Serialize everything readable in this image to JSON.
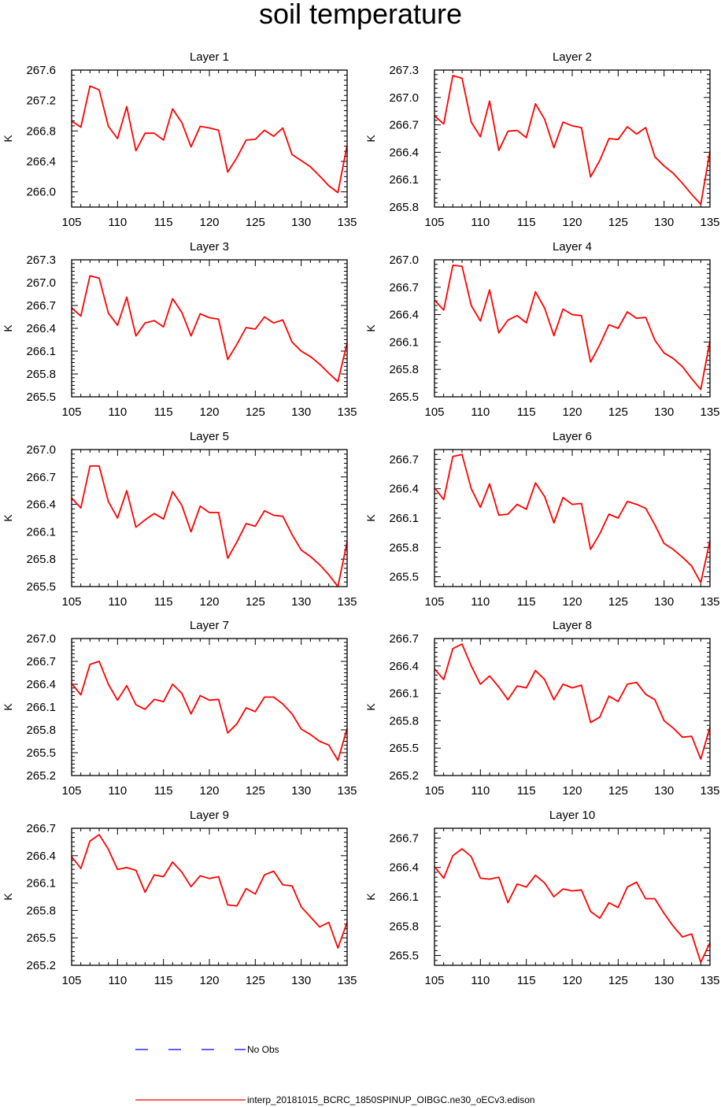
{
  "title": "soil temperature",
  "colors": {
    "model_line": "#ff0000",
    "obs_line": "#0000ff",
    "axes": "#000000"
  },
  "legend": {
    "obs_label": "No Obs",
    "model_label": "interp_20181015_BCRC_1850SPINUP_OIBGC.ne30_oECv3.edison"
  },
  "chart_data": [
    {
      "type": "line",
      "title": "Layer 1",
      "ylabel": "K",
      "xlim": [
        105,
        135
      ],
      "ylim": [
        265.8,
        267.6
      ],
      "xticks": [
        105,
        110,
        115,
        120,
        125,
        130,
        135
      ],
      "yticks": [
        "266.0",
        "266.4",
        "266.8",
        "267.2",
        "267.6"
      ],
      "x": [
        105,
        106,
        107,
        108,
        109,
        110,
        111,
        112,
        113,
        114,
        115,
        116,
        117,
        118,
        119,
        120,
        121,
        122,
        123,
        124,
        125,
        126,
        127,
        128,
        129,
        130,
        131,
        132,
        133,
        134,
        135
      ],
      "series": [
        {
          "values": [
            266.93,
            266.85,
            267.39,
            267.34,
            266.86,
            266.7,
            267.12,
            266.54,
            266.77,
            266.77,
            266.68,
            267.09,
            266.91,
            266.59,
            266.86,
            266.84,
            266.81,
            266.26,
            266.45,
            266.68,
            266.69,
            266.81,
            266.73,
            266.84,
            266.49,
            266.41,
            266.33,
            266.21,
            266.08,
            265.99,
            266.61
          ]
        }
      ]
    },
    {
      "type": "line",
      "title": "Layer 2",
      "ylabel": "K",
      "xlim": [
        105,
        135
      ],
      "ylim": [
        265.8,
        267.3
      ],
      "xticks": [
        105,
        110,
        115,
        120,
        125,
        130,
        135
      ],
      "yticks": [
        "265.8",
        "266.1",
        "266.4",
        "266.7",
        "267.0",
        "267.3"
      ],
      "x": [
        105,
        106,
        107,
        108,
        109,
        110,
        111,
        112,
        113,
        114,
        115,
        116,
        117,
        118,
        119,
        120,
        121,
        122,
        123,
        124,
        125,
        126,
        127,
        128,
        129,
        130,
        131,
        132,
        133,
        134,
        135
      ],
      "series": [
        {
          "values": [
            266.8,
            266.71,
            267.24,
            267.21,
            266.73,
            266.57,
            266.96,
            266.42,
            266.63,
            266.64,
            266.56,
            266.93,
            266.76,
            266.45,
            266.73,
            266.69,
            266.67,
            266.13,
            266.31,
            266.55,
            266.54,
            266.68,
            266.6,
            266.67,
            266.35,
            266.25,
            266.17,
            266.06,
            265.94,
            265.83,
            266.41
          ]
        }
      ]
    },
    {
      "type": "line",
      "title": "Layer 3",
      "ylabel": "K",
      "xlim": [
        105,
        135
      ],
      "ylim": [
        265.5,
        267.3
      ],
      "xticks": [
        105,
        110,
        115,
        120,
        125,
        130,
        135
      ],
      "yticks": [
        "265.5",
        "265.8",
        "266.1",
        "266.4",
        "266.7",
        "267.0",
        "267.3"
      ],
      "x": [
        105,
        106,
        107,
        108,
        109,
        110,
        111,
        112,
        113,
        114,
        115,
        116,
        117,
        118,
        119,
        120,
        121,
        122,
        123,
        124,
        125,
        126,
        127,
        128,
        129,
        130,
        131,
        132,
        133,
        134,
        135
      ],
      "series": [
        {
          "values": [
            266.67,
            266.56,
            267.09,
            267.06,
            266.6,
            266.44,
            266.81,
            266.3,
            266.47,
            266.5,
            266.42,
            266.79,
            266.61,
            266.3,
            266.59,
            266.54,
            266.52,
            265.99,
            266.19,
            266.41,
            266.39,
            266.55,
            266.47,
            266.51,
            266.22,
            266.1,
            266.03,
            265.93,
            265.81,
            265.7,
            266.21
          ]
        }
      ]
    },
    {
      "type": "line",
      "title": "Layer 4",
      "ylabel": "K",
      "xlim": [
        105,
        135
      ],
      "ylim": [
        265.5,
        267.0
      ],
      "xticks": [
        105,
        110,
        115,
        120,
        125,
        130,
        135
      ],
      "yticks": [
        "265.5",
        "265.8",
        "266.1",
        "266.4",
        "266.7",
        "267.0"
      ],
      "x": [
        105,
        106,
        107,
        108,
        109,
        110,
        111,
        112,
        113,
        114,
        115,
        116,
        117,
        118,
        119,
        120,
        121,
        122,
        123,
        124,
        125,
        126,
        127,
        128,
        129,
        130,
        131,
        132,
        133,
        134,
        135
      ],
      "series": [
        {
          "values": [
            266.56,
            266.45,
            266.94,
            266.93,
            266.5,
            266.33,
            266.67,
            266.2,
            266.34,
            266.39,
            266.31,
            266.65,
            266.47,
            266.17,
            266.46,
            266.4,
            266.39,
            265.88,
            266.07,
            266.29,
            266.25,
            266.43,
            266.36,
            266.37,
            266.12,
            265.98,
            265.92,
            265.83,
            265.7,
            265.58,
            266.11
          ]
        }
      ]
    },
    {
      "type": "line",
      "title": "Layer 5",
      "ylabel": "K",
      "xlim": [
        105,
        135
      ],
      "ylim": [
        265.5,
        267.0
      ],
      "xticks": [
        105,
        110,
        115,
        120,
        125,
        130,
        135
      ],
      "yticks": [
        "265.5",
        "265.8",
        "266.1",
        "266.4",
        "266.7",
        "267.0"
      ],
      "x": [
        105,
        106,
        107,
        108,
        109,
        110,
        111,
        112,
        113,
        114,
        115,
        116,
        117,
        118,
        119,
        120,
        121,
        122,
        123,
        124,
        125,
        126,
        127,
        128,
        129,
        130,
        131,
        132,
        133,
        134,
        135
      ],
      "series": [
        {
          "values": [
            266.47,
            266.36,
            266.82,
            266.82,
            266.43,
            266.25,
            266.55,
            266.15,
            266.23,
            266.3,
            266.24,
            266.54,
            266.39,
            266.1,
            266.38,
            266.31,
            266.31,
            265.81,
            265.99,
            266.19,
            266.16,
            266.33,
            266.28,
            266.27,
            266.07,
            265.9,
            265.83,
            265.74,
            265.63,
            265.5,
            265.99
          ]
        }
      ]
    },
    {
      "type": "line",
      "title": "Layer 6",
      "ylabel": "K",
      "xlim": [
        105,
        135
      ],
      "ylim": [
        265.4,
        266.8
      ],
      "xticks": [
        105,
        110,
        115,
        120,
        125,
        130,
        135
      ],
      "yticks": [
        "265.5",
        "265.8",
        "266.1",
        "266.4",
        "266.7"
      ],
      "x": [
        105,
        106,
        107,
        108,
        109,
        110,
        111,
        112,
        113,
        114,
        115,
        116,
        117,
        118,
        119,
        120,
        121,
        122,
        123,
        124,
        125,
        126,
        127,
        128,
        129,
        130,
        131,
        132,
        133,
        134,
        135
      ],
      "series": [
        {
          "values": [
            266.41,
            266.29,
            266.73,
            266.75,
            266.4,
            266.21,
            266.45,
            266.13,
            266.14,
            266.24,
            266.19,
            266.46,
            266.32,
            266.05,
            266.31,
            266.24,
            266.25,
            265.78,
            265.94,
            266.14,
            266.1,
            266.27,
            266.24,
            266.2,
            266.03,
            265.84,
            265.78,
            265.7,
            265.61,
            265.44,
            265.87
          ]
        }
      ]
    },
    {
      "type": "line",
      "title": "Layer 7",
      "ylabel": "K",
      "xlim": [
        105,
        135
      ],
      "ylim": [
        265.2,
        267.0
      ],
      "xticks": [
        105,
        110,
        115,
        120,
        125,
        130,
        135
      ],
      "yticks": [
        "265.2",
        "265.5",
        "265.8",
        "266.1",
        "266.4",
        "266.7",
        "267.0"
      ],
      "x": [
        105,
        106,
        107,
        108,
        109,
        110,
        111,
        112,
        113,
        114,
        115,
        116,
        117,
        118,
        119,
        120,
        121,
        122,
        123,
        124,
        125,
        126,
        127,
        128,
        129,
        130,
        131,
        132,
        133,
        134,
        135
      ],
      "series": [
        {
          "values": [
            266.41,
            266.26,
            266.66,
            266.7,
            266.4,
            266.19,
            266.38,
            266.13,
            266.07,
            266.2,
            266.17,
            266.4,
            266.28,
            266.01,
            266.25,
            266.19,
            266.2,
            265.76,
            265.88,
            266.09,
            266.04,
            266.23,
            266.23,
            266.14,
            266.01,
            265.81,
            265.74,
            265.65,
            265.6,
            265.4,
            265.82
          ]
        }
      ]
    },
    {
      "type": "line",
      "title": "Layer 8",
      "ylabel": "K",
      "xlim": [
        105,
        135
      ],
      "ylim": [
        265.2,
        266.7
      ],
      "xticks": [
        105,
        110,
        115,
        120,
        125,
        130,
        135
      ],
      "yticks": [
        "265.2",
        "265.5",
        "265.8",
        "266.1",
        "266.4",
        "266.7"
      ],
      "x": [
        105,
        106,
        107,
        108,
        109,
        110,
        111,
        112,
        113,
        114,
        115,
        116,
        117,
        118,
        119,
        120,
        121,
        122,
        123,
        124,
        125,
        126,
        127,
        128,
        129,
        130,
        131,
        132,
        133,
        134,
        135
      ],
      "series": [
        {
          "values": [
            266.37,
            266.25,
            266.59,
            266.64,
            266.4,
            266.2,
            266.29,
            266.17,
            266.03,
            266.18,
            266.16,
            266.35,
            266.25,
            266.03,
            266.2,
            266.16,
            266.19,
            265.78,
            265.84,
            266.07,
            266.01,
            266.2,
            266.22,
            266.09,
            266.03,
            265.8,
            265.72,
            265.62,
            265.63,
            265.38,
            265.73
          ]
        }
      ]
    },
    {
      "type": "line",
      "title": "Layer 9",
      "ylabel": "K",
      "xlim": [
        105,
        135
      ],
      "ylim": [
        265.2,
        266.7
      ],
      "xticks": [
        105,
        110,
        115,
        120,
        125,
        130,
        135
      ],
      "yticks": [
        "265.2",
        "265.5",
        "265.8",
        "266.1",
        "266.4",
        "266.7"
      ],
      "x": [
        105,
        106,
        107,
        108,
        109,
        110,
        111,
        112,
        113,
        114,
        115,
        116,
        117,
        118,
        119,
        120,
        121,
        122,
        123,
        124,
        125,
        126,
        127,
        128,
        129,
        130,
        131,
        132,
        133,
        134,
        135
      ],
      "series": [
        {
          "values": [
            266.39,
            266.26,
            266.56,
            266.63,
            266.47,
            266.25,
            266.27,
            266.24,
            266.0,
            266.19,
            266.17,
            266.33,
            266.22,
            266.06,
            266.18,
            266.15,
            266.17,
            265.86,
            265.85,
            266.04,
            265.98,
            266.19,
            266.23,
            266.08,
            266.07,
            265.84,
            265.73,
            265.62,
            265.67,
            265.39,
            265.67
          ]
        }
      ]
    },
    {
      "type": "line",
      "title": "Layer 10",
      "ylabel": "K",
      "xlim": [
        105,
        135
      ],
      "ylim": [
        265.4,
        266.8
      ],
      "xticks": [
        105,
        110,
        115,
        120,
        125,
        130,
        135
      ],
      "yticks": [
        "265.5",
        "265.8",
        "266.1",
        "266.4",
        "266.7"
      ],
      "x": [
        105,
        106,
        107,
        108,
        109,
        110,
        111,
        112,
        113,
        114,
        115,
        116,
        117,
        118,
        119,
        120,
        121,
        122,
        123,
        124,
        125,
        126,
        127,
        128,
        129,
        130,
        131,
        132,
        133,
        134,
        135
      ],
      "series": [
        {
          "values": [
            266.41,
            266.29,
            266.52,
            266.59,
            266.51,
            266.29,
            266.28,
            266.3,
            266.04,
            266.23,
            266.2,
            266.32,
            266.24,
            266.1,
            266.18,
            266.16,
            266.17,
            265.95,
            265.88,
            266.04,
            265.99,
            266.2,
            266.25,
            266.08,
            266.08,
            265.93,
            265.8,
            265.69,
            265.72,
            265.43,
            265.63
          ]
        }
      ]
    }
  ]
}
